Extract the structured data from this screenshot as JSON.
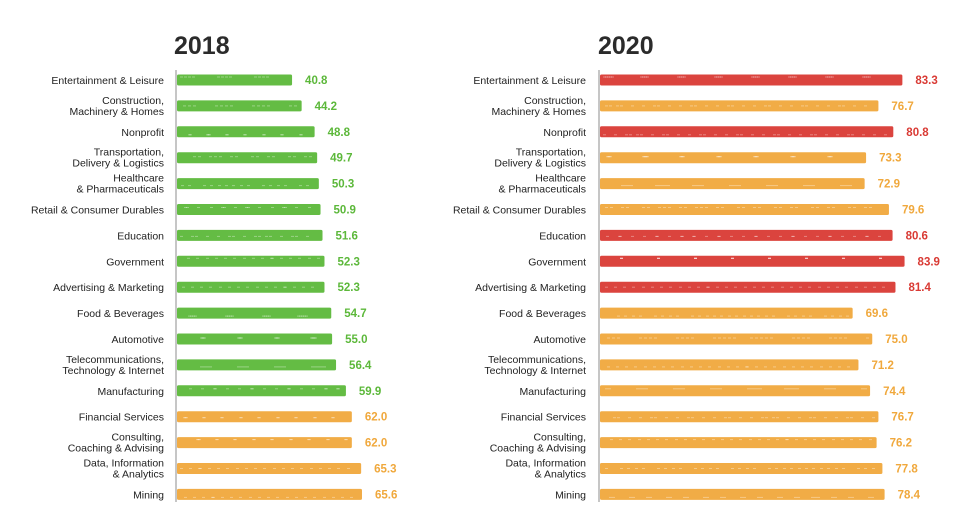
{
  "colors": {
    "green": "#5cb83a",
    "orange": "#f0a83c",
    "red": "#d93a34",
    "axis": "#8c8c8c"
  },
  "chart_data": [
    {
      "type": "bar",
      "orientation": "horizontal",
      "title": "2018",
      "xlim": [
        0,
        90
      ],
      "categories": [
        [
          "Entertainment & Leisure"
        ],
        [
          "Construction,",
          "Machinery & Homes"
        ],
        [
          "Nonprofit"
        ],
        [
          "Transportation,",
          "Delivery & Logistics"
        ],
        [
          "Healthcare",
          "& Pharmaceuticals"
        ],
        [
          "Retail & Consumer Durables"
        ],
        [
          "Education"
        ],
        [
          "Government"
        ],
        [
          "Advertising & Marketing"
        ],
        [
          "Food & Beverages"
        ],
        [
          "Automotive"
        ],
        [
          "Telecommunications,",
          "Technology & Internet"
        ],
        [
          "Manufacturing"
        ],
        [
          "Financial Services"
        ],
        [
          "Consulting,",
          "Coaching & Advising"
        ],
        [
          "Data, Information",
          "& Analytics"
        ],
        [
          "Mining"
        ]
      ],
      "values": [
        40.8,
        44.2,
        48.8,
        49.7,
        50.3,
        50.9,
        51.6,
        52.3,
        52.3,
        54.7,
        55.0,
        56.4,
        59.9,
        62.0,
        62.0,
        65.3,
        65.6
      ],
      "value_labels": [
        "40.8",
        "44.2",
        "48.8",
        "49.7",
        "50.3",
        "50.9",
        "51.6",
        "52.3",
        "52.3",
        "54.7",
        "55.0",
        "56.4",
        "59.9",
        "62.0",
        "62.0",
        "65.3",
        "65.6"
      ],
      "bar_colors": [
        "green",
        "green",
        "green",
        "green",
        "green",
        "green",
        "green",
        "green",
        "green",
        "green",
        "green",
        "green",
        "green",
        "orange",
        "orange",
        "orange",
        "orange"
      ]
    },
    {
      "type": "bar",
      "orientation": "horizontal",
      "title": "2020",
      "xlim": [
        0,
        90
      ],
      "categories": [
        [
          "Entertainment & Leisure"
        ],
        [
          "Construction,",
          "Machinery & Homes"
        ],
        [
          "Nonprofit"
        ],
        [
          "Transportation,",
          "Delivery & Logistics"
        ],
        [
          "Healthcare",
          "& Pharmaceuticals"
        ],
        [
          "Retail & Consumer Durables"
        ],
        [
          "Education"
        ],
        [
          "Government"
        ],
        [
          "Advertising & Marketing"
        ],
        [
          "Food & Beverages"
        ],
        [
          "Automotive"
        ],
        [
          "Telecommunications,",
          "Technology & Internet"
        ],
        [
          "Manufacturing"
        ],
        [
          "Financial Services"
        ],
        [
          "Consulting,",
          "Coaching & Advising"
        ],
        [
          "Data, Information",
          "& Analytics"
        ],
        [
          "Mining"
        ]
      ],
      "values": [
        83.3,
        76.7,
        80.8,
        73.3,
        72.9,
        79.6,
        80.6,
        83.9,
        81.4,
        69.6,
        75.0,
        71.2,
        74.4,
        76.7,
        76.2,
        77.8,
        78.4
      ],
      "value_labels": [
        "83.3",
        "76.7",
        "80.8",
        "73.3",
        "72.9",
        "79.6",
        "80.6",
        "83.9",
        "81.4",
        "69.6",
        "75.0",
        "71.2",
        "74.4",
        "76.7",
        "76.2",
        "77.8",
        "78.4"
      ],
      "bar_colors": [
        "red",
        "orange",
        "red",
        "orange",
        "orange",
        "orange",
        "red",
        "red",
        "red",
        "orange",
        "orange",
        "orange",
        "orange",
        "orange",
        "orange",
        "orange",
        "orange"
      ]
    }
  ]
}
